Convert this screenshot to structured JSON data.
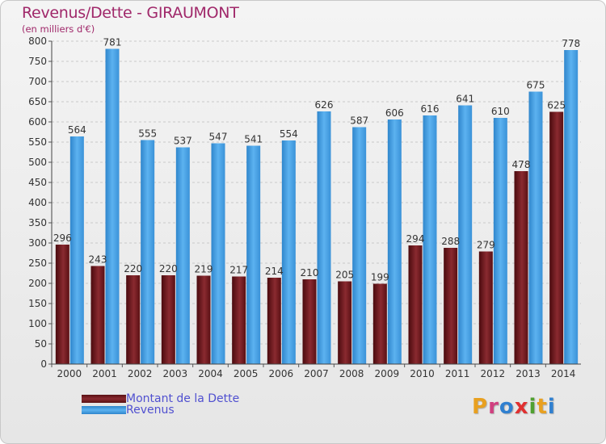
{
  "title": "Revenus/Dette - GIRAUMONT",
  "subtitle": "(en milliers d'€)",
  "colors": {
    "dette": "#7a1e22",
    "revenus": "#4aa3e6",
    "title": "#a0286a",
    "legend_text": "#5050d0"
  },
  "logo": {
    "text": "Proxiti",
    "letter_colors": [
      "#e8a020",
      "#d04080",
      "#3080d0",
      "#e03030",
      "#50a030",
      "#e8a020",
      "#3080d0"
    ]
  },
  "chart_data": {
    "type": "bar",
    "title": "Revenus/Dette - GIRAUMONT",
    "subtitle": "(en milliers d'€)",
    "categories": [
      "2000",
      "2001",
      "2002",
      "2003",
      "2004",
      "2005",
      "2006",
      "2007",
      "2008",
      "2009",
      "2010",
      "2011",
      "2012",
      "2013",
      "2014"
    ],
    "series": [
      {
        "name": "Montant de la Dette",
        "values": [
          296,
          243,
          220,
          220,
          219,
          217,
          214,
          210,
          205,
          199,
          294,
          288,
          279,
          478,
          625
        ]
      },
      {
        "name": "Revenus",
        "values": [
          564,
          781,
          555,
          537,
          547,
          541,
          554,
          626,
          587,
          606,
          616,
          641,
          610,
          675,
          778
        ]
      }
    ],
    "yticks": [
      0,
      50,
      100,
      150,
      200,
      250,
      300,
      350,
      400,
      450,
      500,
      550,
      600,
      650,
      700,
      750,
      800
    ],
    "ylim": [
      0,
      800
    ],
    "grid": true,
    "legend_position": "bottom-left"
  }
}
